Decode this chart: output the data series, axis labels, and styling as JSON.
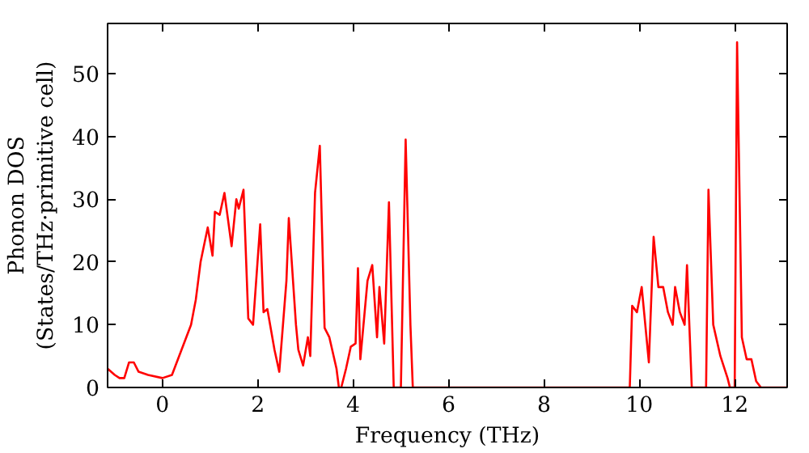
{
  "chart_data": {
    "type": "line",
    "xlabel": "Frequency (THz)",
    "ylabel": "Phonon DOS\n(States/THz·primitive cell)",
    "xlim": [
      -1.15,
      13.1
    ],
    "ylim": [
      0,
      58
    ],
    "xticks": [
      0,
      2,
      4,
      6,
      8,
      10,
      12
    ],
    "yticks": [
      0,
      10,
      20,
      30,
      40,
      50
    ],
    "grid": false,
    "line_style": "solid",
    "marker": "none",
    "series": [
      {
        "color": "#ff0000",
        "x": [
          -1.15,
          -1.0,
          -0.9,
          -0.8,
          -0.7,
          -0.6,
          -0.5,
          -0.3,
          0,
          0.2,
          0.3,
          0.5,
          0.6,
          0.7,
          0.8,
          0.95,
          1.05,
          1.1,
          1.2,
          1.3,
          1.45,
          1.55,
          1.6,
          1.7,
          1.8,
          1.9,
          2.05,
          2.12,
          2.2,
          2.35,
          2.45,
          2.6,
          2.65,
          2.8,
          2.85,
          2.95,
          3.05,
          3.1,
          3.2,
          3.3,
          3.4,
          3.5,
          3.65,
          3.7,
          3.75,
          3.85,
          3.95,
          4.05,
          4.1,
          4.15,
          4.3,
          4.4,
          4.5,
          4.55,
          4.65,
          4.75,
          4.85,
          5.0,
          5.1,
          5.2,
          5.25,
          9.8,
          9.85,
          9.95,
          10.05,
          10.15,
          10.2,
          10.3,
          10.4,
          10.5,
          10.6,
          10.7,
          10.75,
          10.85,
          10.95,
          11.0,
          11.1,
          11.4,
          11.45,
          11.55,
          11.7,
          11.85,
          11.9,
          12.0,
          12.05,
          12.15,
          12.25,
          12.35,
          12.45,
          12.55,
          13.1
        ],
        "values": [
          3,
          2,
          1.5,
          1.5,
          4,
          4,
          2.5,
          2,
          1.5,
          2,
          4,
          8,
          10,
          14,
          20,
          25.5,
          21,
          28,
          27.5,
          31,
          22.5,
          30,
          28.5,
          31.5,
          11,
          10,
          26,
          12,
          12.5,
          6,
          2.5,
          17,
          27,
          10,
          6,
          3.5,
          8,
          5,
          31,
          38.5,
          9.5,
          8,
          3,
          0,
          0,
          3,
          6.5,
          7,
          19,
          4.5,
          17,
          19.5,
          8,
          16,
          7,
          29.5,
          0,
          0,
          39.5,
          10,
          0,
          0,
          13,
          12,
          16,
          8,
          4,
          24,
          16,
          16,
          12,
          10,
          16,
          12,
          10,
          19.5,
          0,
          0,
          31.5,
          10,
          5,
          1.5,
          0,
          0,
          55,
          8,
          4.5,
          4.5,
          1,
          0,
          0
        ]
      }
    ]
  }
}
